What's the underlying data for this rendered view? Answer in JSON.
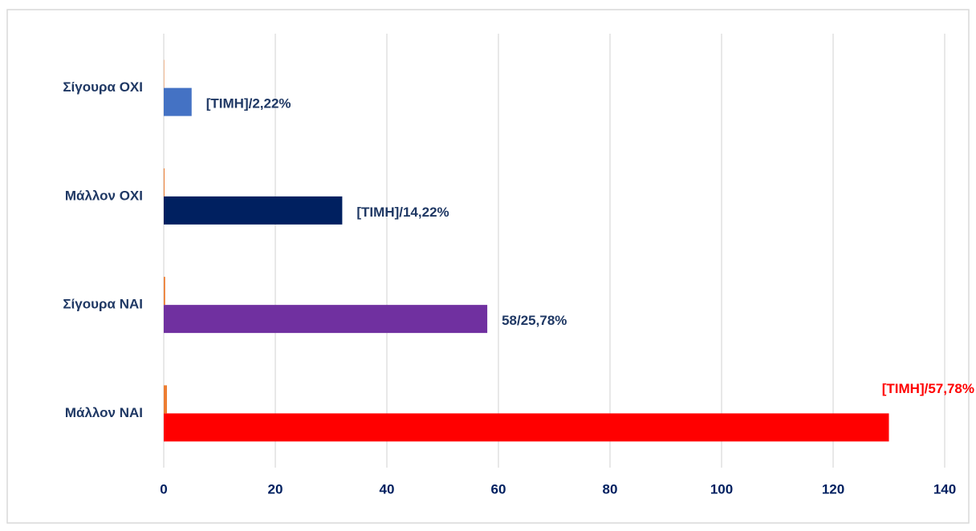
{
  "chart_data": {
    "type": "bar",
    "orientation": "horizontal",
    "categories": [
      "Σίγουρα ΟΧΙ",
      "Μάλλον ΟΧΙ",
      "Σίγουρα ΝΑΙ",
      "Μάλλον ΝΑΙ"
    ],
    "series": [
      {
        "colors": [
          "#4472c4",
          "#002060",
          "#7030a0",
          "#ff0000"
        ],
        "values": [
          5,
          32,
          58,
          130
        ],
        "value_labels": [
          "[ΤΙΜΗ]/2,22%",
          "[ΤΙΜΗ]/14,22%",
          "58/25,78%",
          "[ΤΙΜΗ]/57,78%"
        ],
        "value_label_colors": [
          "#1f3864",
          "#1f3864",
          "#1f3864",
          "#ff0000"
        ]
      },
      {
        "color": "#ed7d31",
        "values": [
          0.0222,
          0.1422,
          0.2578,
          0.5778
        ]
      }
    ],
    "xlim": [
      0,
      140
    ],
    "xticks": [
      0,
      20,
      40,
      60,
      80,
      100,
      120,
      140
    ],
    "grid": true
  }
}
